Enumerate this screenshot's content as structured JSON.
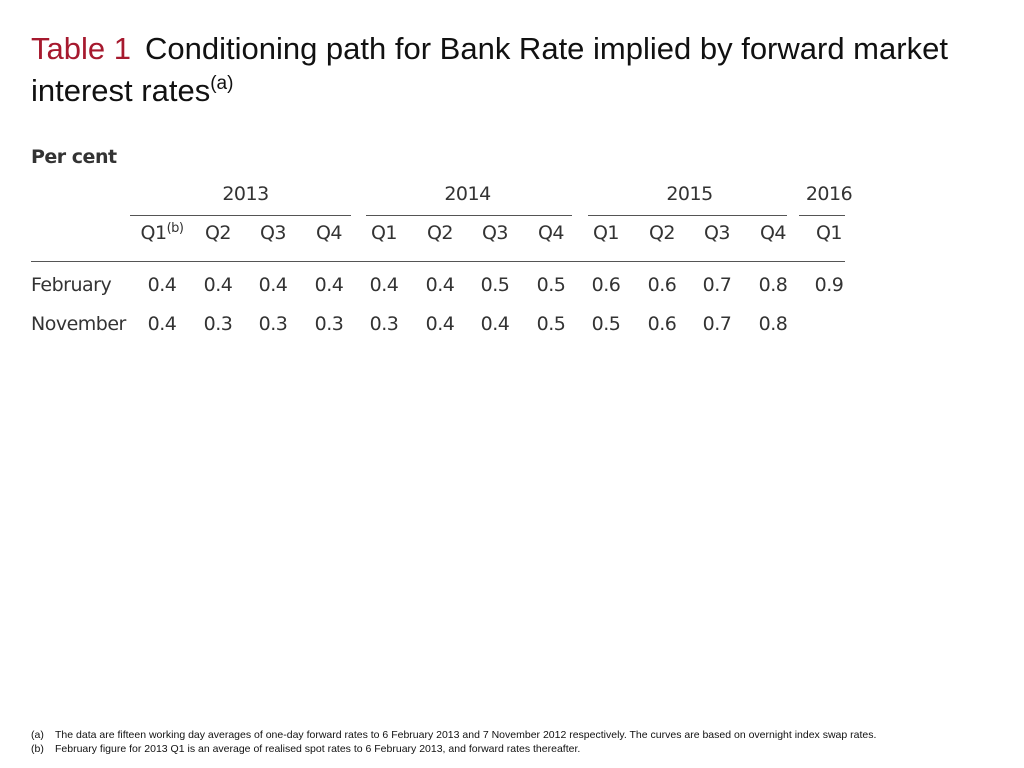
{
  "title": {
    "label": "Table 1",
    "text": "Conditioning path for Bank Rate implied by forward market interest rates",
    "note_ref": "(a)"
  },
  "unit_label": "Per cent",
  "table": {
    "years": [
      "2013",
      "2014",
      "2015",
      "2016"
    ],
    "quarters": [
      {
        "label": "Q1",
        "note_ref": "(b)"
      },
      {
        "label": "Q2"
      },
      {
        "label": "Q3"
      },
      {
        "label": "Q4"
      },
      {
        "label": "Q1"
      },
      {
        "label": "Q2"
      },
      {
        "label": "Q3"
      },
      {
        "label": "Q4"
      },
      {
        "label": "Q1"
      },
      {
        "label": "Q2"
      },
      {
        "label": "Q3"
      },
      {
        "label": "Q4"
      },
      {
        "label": "Q1"
      }
    ],
    "rows": [
      {
        "label": "February",
        "values": [
          "0.4",
          "0.4",
          "0.4",
          "0.4",
          "0.4",
          "0.4",
          "0.5",
          "0.5",
          "0.6",
          "0.6",
          "0.7",
          "0.8",
          "0.9"
        ]
      },
      {
        "label": "November",
        "values": [
          "0.4",
          "0.3",
          "0.3",
          "0.3",
          "0.3",
          "0.4",
          "0.4",
          "0.5",
          "0.5",
          "0.6",
          "0.7",
          "0.8",
          ""
        ]
      }
    ]
  },
  "footnotes": [
    {
      "mark": "(a)",
      "text": "The data are fifteen working day averages of one-day forward rates to 6 February 2013 and 7 November 2012 respectively.  The curves are based on overnight index swap rates."
    },
    {
      "mark": "(b)",
      "text": "February figure for 2013 Q1 is an average of realised spot rates to 6 February 2013, and forward rates thereafter."
    }
  ]
}
